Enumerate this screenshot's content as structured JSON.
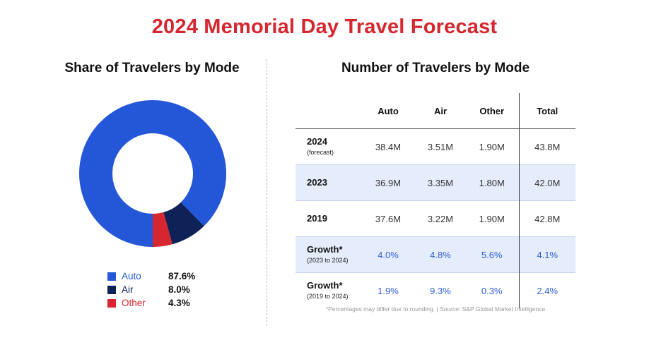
{
  "title": "2024 Memorial Day Travel Forecast",
  "colors": {
    "title": "#d6262f",
    "auto": "#2456d8",
    "air": "#0e2257",
    "other": "#d6262f",
    "growth_text": "#2f5fd6",
    "row_shade": "#e5ecfb"
  },
  "left_title": "Share of Travelers by Mode",
  "right_title": "Number of Travelers by Mode",
  "chart_data": [
    {
      "type": "pie",
      "title": "Share of Travelers by Mode",
      "donut": true,
      "slices": [
        {
          "label": "Auto",
          "value": 87.6,
          "display": "87.6%",
          "color": "#2456d8"
        },
        {
          "label": "Air",
          "value": 8.0,
          "display": "8.0%",
          "color": "#0e2257"
        },
        {
          "label": "Other",
          "value": 4.3,
          "display": "4.3%",
          "color": "#d6262f"
        }
      ],
      "legend_placement": "bottom"
    },
    {
      "type": "table",
      "title": "Number of Travelers by Mode",
      "columns": [
        "",
        "Auto",
        "Air",
        "Other",
        "Total"
      ],
      "rows": [
        {
          "label": "2024",
          "sublabel": "(forecast)",
          "values": [
            "38.4M",
            "3.51M",
            "1.90M",
            "43.8M"
          ],
          "shaded": false,
          "growth": false
        },
        {
          "label": "2023",
          "sublabel": "",
          "values": [
            "36.9M",
            "3.35M",
            "1.80M",
            "42.0M"
          ],
          "shaded": true,
          "growth": false
        },
        {
          "label": "2019",
          "sublabel": "",
          "values": [
            "37.6M",
            "3.22M",
            "1.90M",
            "42.8M"
          ],
          "shaded": false,
          "growth": false
        },
        {
          "label": "Growth*",
          "sublabel": "(2023 to 2024)",
          "values": [
            "4.0%",
            "4.8%",
            "5.6%",
            "4.1%"
          ],
          "shaded": true,
          "growth": true
        },
        {
          "label": "Growth*",
          "sublabel": "(2019 to 2024)",
          "values": [
            "1.9%",
            "9.3%",
            "0.3%",
            "2.4%"
          ],
          "shaded": false,
          "growth": true
        }
      ]
    }
  ],
  "footnote": {
    "text": "*Percentages may differ due to rounding. | ",
    "source_label": "Source:",
    "source_text": " S&P Global Market Intelligence"
  }
}
